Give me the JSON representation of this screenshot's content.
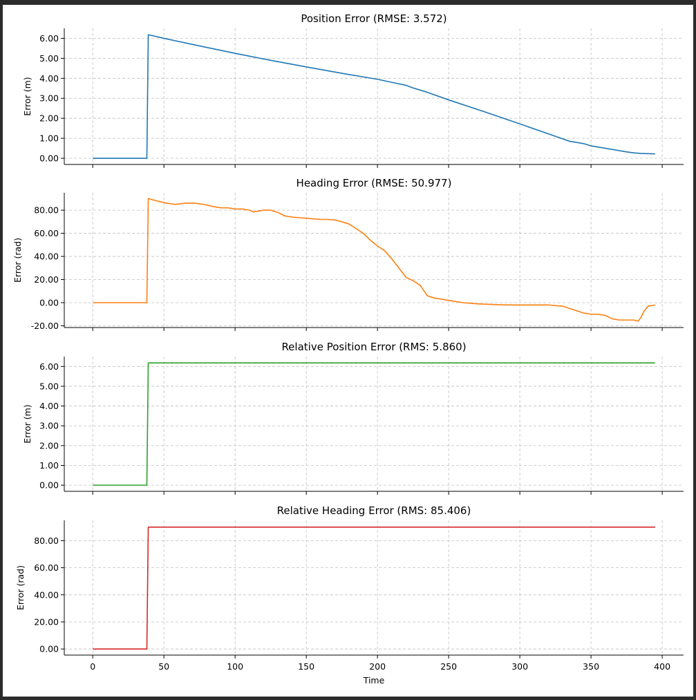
{
  "chart_data": [
    {
      "type": "line",
      "title": "Position Error (RMSE: 3.572)",
      "ylabel": "Error (m)",
      "xlabel": "",
      "color": "#1f77b4",
      "xlim": [
        -20,
        415
      ],
      "ylim": [
        -0.31,
        6.5
      ],
      "yticks": [
        0,
        1,
        2,
        3,
        4,
        5,
        6
      ],
      "ytick_labels": [
        "0.00",
        "1.00",
        "2.00",
        "3.00",
        "4.00",
        "5.00",
        "6.00"
      ],
      "xticks": [
        0,
        50,
        100,
        150,
        200,
        250,
        300,
        350,
        400
      ],
      "xtick_labels": [],
      "grid": true,
      "series": [
        {
          "x": [
            0,
            38,
            39,
            50,
            75,
            100,
            125,
            150,
            175,
            200,
            210,
            220,
            225,
            235,
            250,
            275,
            300,
            325,
            335,
            345,
            350,
            360,
            375,
            380,
            385,
            395
          ],
          "y": [
            0,
            0,
            6.18,
            6.0,
            5.62,
            5.25,
            4.9,
            4.57,
            4.25,
            3.95,
            3.8,
            3.65,
            3.52,
            3.3,
            2.92,
            2.33,
            1.72,
            1.1,
            0.85,
            0.73,
            0.62,
            0.5,
            0.32,
            0.27,
            0.24,
            0.22
          ]
        }
      ]
    },
    {
      "type": "line",
      "title": "Heading Error (RMSE: 50.977)",
      "ylabel": "Error (rad)",
      "xlabel": "",
      "color": "#ff7f0e",
      "xlim": [
        -20,
        415
      ],
      "ylim": [
        -21.5,
        95
      ],
      "yticks": [
        -20,
        0,
        20,
        40,
        60,
        80
      ],
      "ytick_labels": [
        "-20.00",
        "0.00",
        "20.00",
        "40.00",
        "60.00",
        "80.00"
      ],
      "xticks": [
        0,
        50,
        100,
        150,
        200,
        250,
        300,
        350,
        400
      ],
      "xtick_labels": [],
      "grid": true,
      "series": [
        {
          "x": [
            0,
            38,
            39,
            45,
            52,
            58,
            65,
            72,
            78,
            85,
            90,
            95,
            100,
            105,
            110,
            113,
            116,
            120,
            125,
            130,
            135,
            140,
            145,
            150,
            155,
            160,
            165,
            170,
            175,
            180,
            185,
            190,
            195,
            200,
            205,
            210,
            215,
            220,
            225,
            230,
            235,
            240,
            250,
            260,
            270,
            280,
            290,
            300,
            310,
            320,
            330,
            335,
            340,
            345,
            350,
            355,
            360,
            365,
            370,
            380,
            383,
            385,
            387,
            390,
            395
          ],
          "y": [
            0,
            0,
            90,
            88,
            86,
            85,
            86,
            86,
            85,
            83,
            82,
            82,
            81,
            81,
            80,
            78.5,
            79,
            80,
            80,
            78,
            75,
            74,
            73.5,
            73,
            72.5,
            72,
            72,
            71.5,
            70,
            68,
            64,
            60,
            54,
            49,
            45,
            38,
            30,
            22,
            19,
            15,
            6,
            4,
            2,
            0,
            -1,
            -1.5,
            -2,
            -2,
            -2,
            -2,
            -3,
            -5,
            -7,
            -9,
            -10,
            -10,
            -11,
            -14,
            -15,
            -15,
            -16,
            -13,
            -8,
            -3,
            -2
          ]
        }
      ]
    },
    {
      "type": "line",
      "title": "Relative Position Error (RMS: 5.860)",
      "ylabel": "Error (m)",
      "xlabel": "",
      "color": "#2ca02c",
      "xlim": [
        -20,
        415
      ],
      "ylim": [
        -0.31,
        6.5
      ],
      "yticks": [
        0,
        1,
        2,
        3,
        4,
        5,
        6
      ],
      "ytick_labels": [
        "0.00",
        "1.00",
        "2.00",
        "3.00",
        "4.00",
        "5.00",
        "6.00"
      ],
      "xticks": [
        0,
        50,
        100,
        150,
        200,
        250,
        300,
        350,
        400
      ],
      "xtick_labels": [],
      "grid": true,
      "series": [
        {
          "x": [
            0,
            38,
            39,
            395
          ],
          "y": [
            0,
            0,
            6.18,
            6.18
          ]
        }
      ]
    },
    {
      "type": "line",
      "title": "Relative Heading Error (RMS: 85.406)",
      "ylabel": "Error (rad)",
      "xlabel": "Time",
      "color": "#d62728",
      "xlim": [
        -20,
        415
      ],
      "ylim": [
        -4.5,
        95
      ],
      "yticks": [
        0,
        20,
        40,
        60,
        80
      ],
      "ytick_labels": [
        "0.00",
        "20.00",
        "40.00",
        "60.00",
        "80.00"
      ],
      "xticks": [
        0,
        50,
        100,
        150,
        200,
        250,
        300,
        350,
        400
      ],
      "xtick_labels": [
        "0",
        "50",
        "100",
        "150",
        "200",
        "250",
        "300",
        "350",
        "400"
      ],
      "grid": true,
      "series": [
        {
          "x": [
            0,
            38,
            39,
            395
          ],
          "y": [
            0,
            0,
            90,
            90
          ]
        }
      ]
    }
  ]
}
